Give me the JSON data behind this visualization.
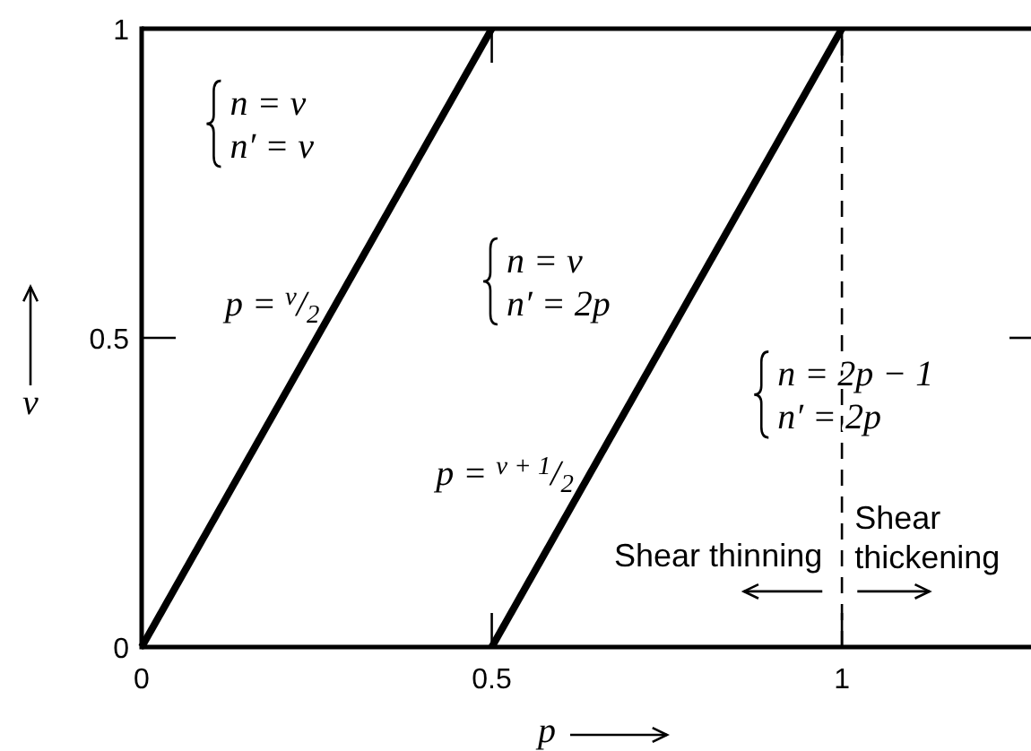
{
  "chart_data": {
    "type": "line",
    "xlabel": "p",
    "ylabel": "ν",
    "xlim": [
      0,
      1.27
    ],
    "ylim": [
      0,
      1
    ],
    "xticks": [
      0,
      0.5,
      1
    ],
    "yticks": [
      0,
      0.5,
      1
    ],
    "series": [
      {
        "x": [
          0,
          0.5
        ],
        "values": [
          0,
          1
        ],
        "color": "#000000"
      },
      {
        "x": [
          0.5,
          1
        ],
        "values": [
          0,
          1
        ],
        "color": "#000000"
      }
    ],
    "ref_lines": [
      {
        "axis": "x",
        "value": 1,
        "line_style": "dashed",
        "color": "#000000"
      }
    ],
    "annotations": [
      "n = ν\nn′ = ν",
      "n = ν\nn′ = 2p",
      "n = 2p − 1\nn′ = 2p",
      {
        "text": "p = $^{ν}$/$_{2}$",
        "x": 0.277,
        "y": 0.554
      },
      {
        "text": "p = $^{ν + 1}$/$_{2}$",
        "x": 0.64,
        "y": 0.28
      },
      "Shear thinning",
      "Shear\nthickening"
    ]
  }
}
